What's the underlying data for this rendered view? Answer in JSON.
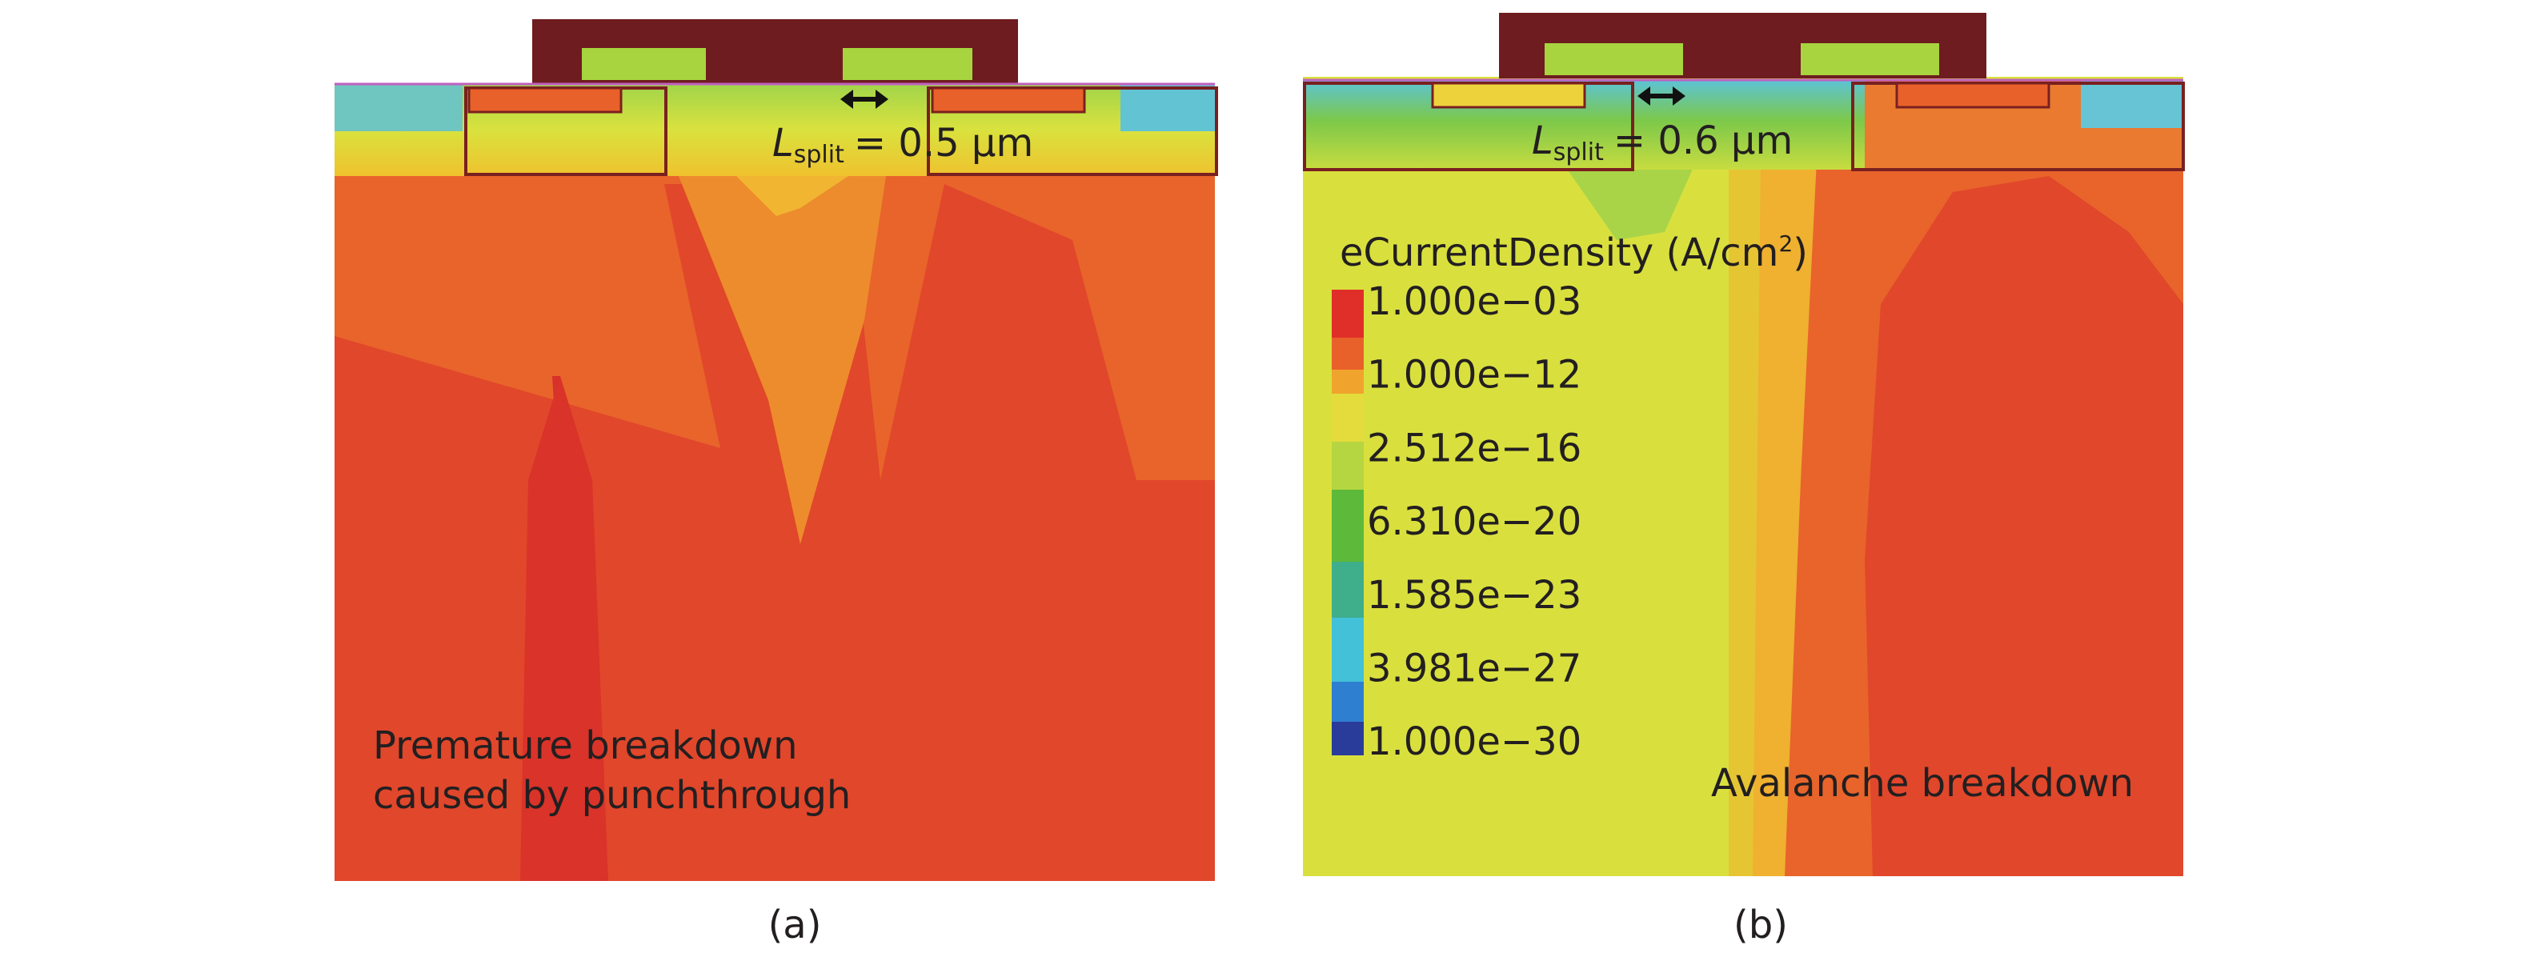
{
  "panels": [
    {
      "split_label": {
        "symbol": "L",
        "subscript": "split",
        "text": "= 0.5 µm"
      },
      "annotation": [
        "Premature breakdown",
        "caused by punchthrough"
      ],
      "caption": "(a)"
    },
    {
      "split_label": {
        "symbol": "L",
        "subscript": "split",
        "text": "= 0.6 µm"
      },
      "annotation": [
        "Avalanche breakdown"
      ],
      "caption": "(b)",
      "legend": {
        "title": "eCurrentDensity (A/cm",
        "title_superscript": "2",
        "title_end": ")",
        "labels": [
          "1.000e−03",
          "1.000e−12",
          "2.512e−16",
          "6.310e−20",
          "1.585e−23",
          "3.981e−27",
          "1.000e−30"
        ]
      }
    }
  ]
}
